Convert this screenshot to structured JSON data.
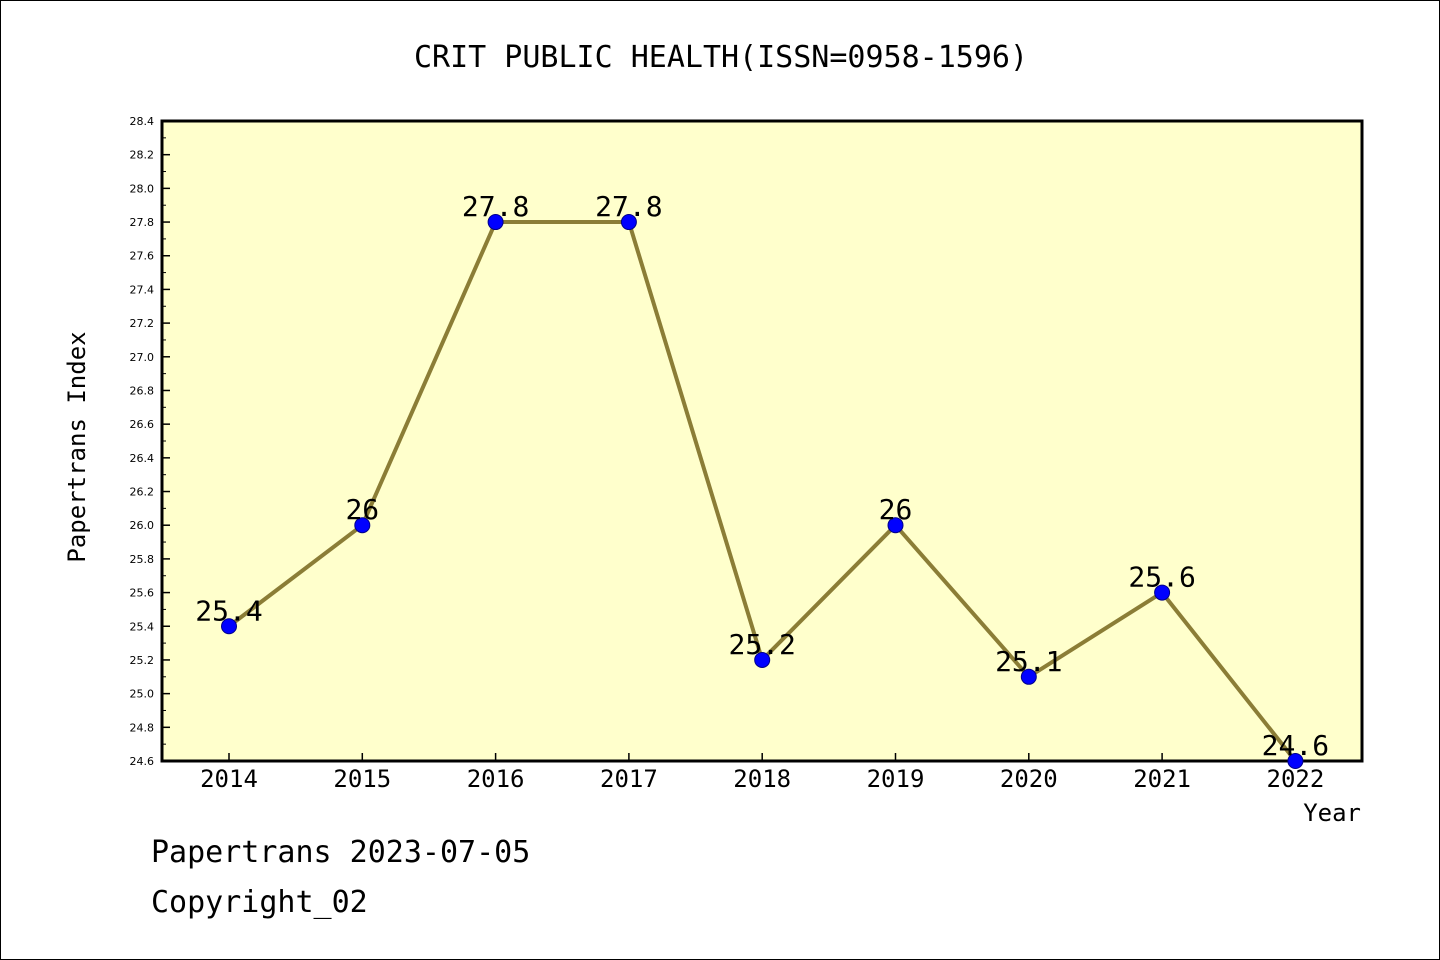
{
  "colors": {
    "plot_background": "#ffffcc",
    "line": "#8b7d36",
    "marker": "#0000ff"
  },
  "footer": {
    "source_line": "Papertrans 2023-07-05",
    "copyright": "Copyright_02"
  },
  "chart_data": {
    "type": "line",
    "title": "CRIT PUBLIC HEALTH(ISSN=0958-1596)",
    "xlabel": "Year",
    "ylabel": "Papertrans Index",
    "categories": [
      "2014",
      "2015",
      "2016",
      "2017",
      "2018",
      "2019",
      "2020",
      "2021",
      "2022"
    ],
    "values": [
      25.4,
      26.0,
      27.8,
      27.8,
      25.2,
      26.0,
      25.1,
      25.6,
      24.6
    ],
    "data_labels": [
      "25.4",
      "26",
      "27.8",
      "27.8",
      "25.2",
      "26",
      "25.1",
      "25.6",
      "24.6"
    ],
    "ylim": [
      24.6,
      28.4
    ],
    "yticks": [
      "24.6",
      "24.8",
      "25.0",
      "25.2",
      "25.4",
      "25.6",
      "25.8",
      "26.0",
      "26.2",
      "26.4",
      "26.6",
      "26.8",
      "27.0",
      "27.2",
      "27.4",
      "27.6",
      "27.8",
      "28.0",
      "28.2",
      "28.4"
    ],
    "grid": false,
    "legend": "none"
  }
}
